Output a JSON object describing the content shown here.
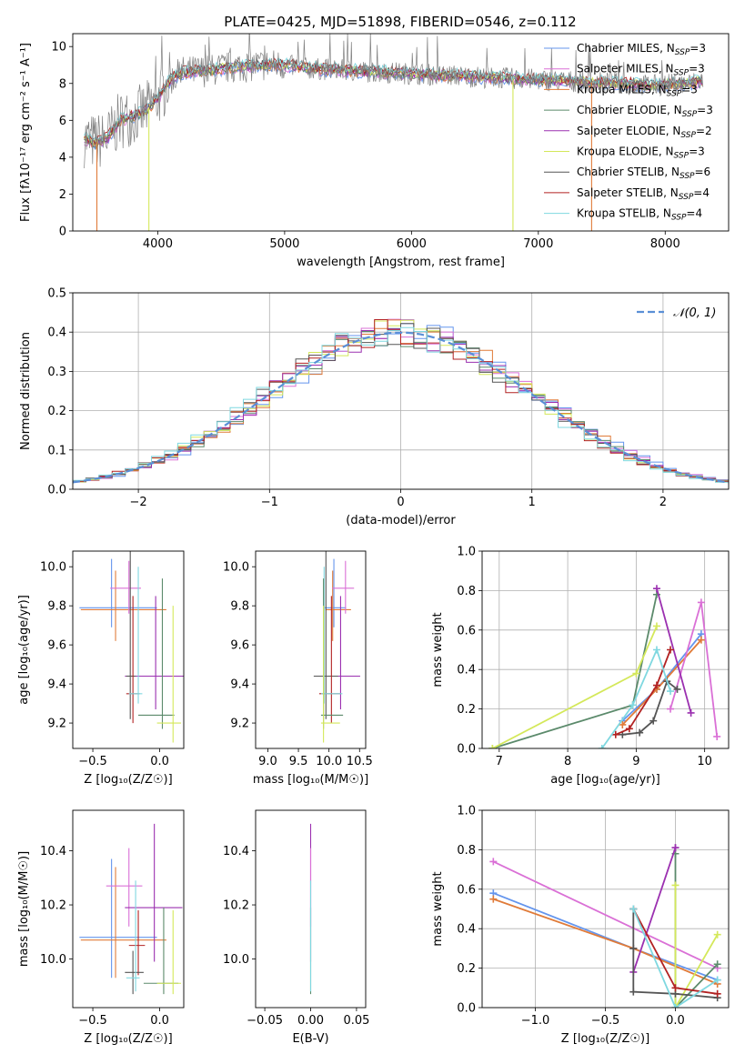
{
  "figure": {
    "title": "PLATE=0425, MJD=51898, FIBERID=0546, z=0.112"
  },
  "colors": {
    "chabrier_miles": "#6495ed",
    "salpeter_miles": "#da70d6",
    "kroupa_miles": "#e07b39",
    "chabrier_elodie": "#5b8a6b",
    "salpeter_elodie": "#9b30b0",
    "kroupa_elodie": "#d4e85a",
    "chabrier_stelib": "#555555",
    "salpeter_stelib": "#b22222",
    "kroupa_stelib": "#7fd8e0",
    "data": "#808080",
    "gauss": "#5a8fd6"
  },
  "chart_data": [
    {
      "id": "spectrum",
      "type": "line",
      "xlabel": "wavelength [Angstrom, rest frame]",
      "ylabel": "Flux [fλ10⁻¹⁷ erg cm⁻² s⁻¹ A⁻¹]",
      "xlim": [
        3330,
        8500
      ],
      "ylim": [
        0,
        10.7
      ],
      "xticks": [
        4000,
        5000,
        6000,
        7000,
        8000
      ],
      "yticks": [
        0,
        2,
        4,
        6,
        8,
        10
      ],
      "legend_position": "top-right",
      "legend": [
        {
          "label": "Chabrier MILES, N",
          "sub": "SSP",
          "suffix": "=3",
          "color": "chabrier_miles"
        },
        {
          "label": "Salpeter MILES, N",
          "sub": "SSP",
          "suffix": "=3",
          "color": "salpeter_miles"
        },
        {
          "label": "Kroupa MILES, N",
          "sub": "SSP",
          "suffix": "=3",
          "color": "kroupa_miles"
        },
        {
          "label": "Chabrier ELODIE, N",
          "sub": "SSP",
          "suffix": "=3",
          "color": "chabrier_elodie"
        },
        {
          "label": "Salpeter ELODIE, N",
          "sub": "SSP",
          "suffix": "=2",
          "color": "salpeter_elodie"
        },
        {
          "label": "Kroupa ELODIE, N",
          "sub": "SSP",
          "suffix": "=3",
          "color": "kroupa_elodie"
        },
        {
          "label": "Chabrier STELIB, N",
          "sub": "SSP",
          "suffix": "=6",
          "color": "chabrier_stelib"
        },
        {
          "label": "Salpeter STELIB, N",
          "sub": "SSP",
          "suffix": "=4",
          "color": "salpeter_stelib"
        },
        {
          "label": "Kroupa STELIB, N",
          "sub": "SSP",
          "suffix": "=4",
          "color": "kroupa_stelib"
        }
      ],
      "continuum": {
        "x": [
          3420,
          3500,
          3600,
          3700,
          3800,
          3900,
          4000,
          4100,
          4200,
          4400,
          4600,
          4800,
          5000,
          5200,
          5500,
          5800,
          6100,
          6400,
          6700,
          7000,
          7300,
          7600,
          7900,
          8200,
          8300
        ],
        "y": [
          5.0,
          4.8,
          5.0,
          6.0,
          6.2,
          6.5,
          7.2,
          8.2,
          8.6,
          8.7,
          8.9,
          9.0,
          9.0,
          8.8,
          8.7,
          8.6,
          8.5,
          8.4,
          8.3,
          8.2,
          8.1,
          8.0,
          7.9,
          8.0,
          8.2
        ]
      },
      "drops": [
        {
          "x": 3520,
          "color": "kroupa_miles"
        },
        {
          "x": 3930,
          "color": "kroupa_elodie"
        },
        {
          "x": 6800,
          "color": "kroupa_elodie"
        },
        {
          "x": 7420,
          "color": "kroupa_miles"
        }
      ]
    },
    {
      "id": "residuals",
      "type": "histogram",
      "xlabel": "(data-model)/error",
      "ylabel": "Normed distribution",
      "xlim": [
        -2.5,
        2.5
      ],
      "ylim": [
        0,
        0.5
      ],
      "xticks": [
        -2,
        -1,
        0,
        1,
        2
      ],
      "yticks": [
        0.0,
        0.1,
        0.2,
        0.3,
        0.4,
        0.5
      ],
      "bin_width": 0.1,
      "grid": true,
      "legend_position": "top-right",
      "gauss_label": "𝒩(0, 1)"
    },
    {
      "id": "age_vs_Z",
      "type": "errorbar",
      "xlabel": "Z [log₁₀(Z/Z☉)]",
      "ylabel": "age  [log₁₀(age/yr)]",
      "xlim": [
        -0.65,
        0.18
      ],
      "ylim": [
        9.07,
        10.08
      ],
      "xticks": [
        -0.5,
        0.0
      ],
      "yticks": [
        9.2,
        9.4,
        9.6,
        9.8,
        10.0
      ],
      "points": [
        {
          "color": "chabrier_miles",
          "x": -0.36,
          "xerr": [
            0.24,
            0.34
          ],
          "y": 9.79,
          "yerr": [
            0.1,
            0.25
          ]
        },
        {
          "color": "kroupa_miles",
          "x": -0.33,
          "xerr": [
            0.26,
            0.38
          ],
          "y": 9.78,
          "yerr": [
            0.16,
            0.2
          ]
        },
        {
          "color": "salpeter_miles",
          "x": -0.23,
          "xerr": [
            0.14,
            0.09
          ],
          "y": 9.89,
          "yerr": [
            0.13,
            0.14
          ]
        },
        {
          "color": "salpeter_elodie",
          "x": -0.03,
          "xerr": [
            0.23,
            0.22
          ],
          "y": 9.44,
          "yerr": [
            0.17,
            0.41
          ]
        },
        {
          "color": "chabrier_stelib",
          "x": -0.22,
          "xerr": [
            0.03,
            0.04
          ],
          "y": 9.44,
          "yerr": [
            0.22,
            0.64
          ]
        },
        {
          "color": "salpeter_stelib",
          "x": -0.2,
          "xerr": [
            0.05,
            0.05
          ],
          "y": 9.35,
          "yerr": [
            0.15,
            0.5
          ]
        },
        {
          "color": "kroupa_stelib",
          "x": -0.16,
          "xerr": [
            0.07,
            0.03
          ],
          "y": 9.35,
          "yerr": [
            0.05,
            0.65
          ]
        },
        {
          "color": "chabrier_elodie",
          "x": 0.02,
          "xerr": [
            0.18,
            0.09
          ],
          "y": 9.24,
          "yerr": [
            0.07,
            0.7
          ]
        },
        {
          "color": "kroupa_elodie",
          "x": 0.1,
          "xerr": [
            0.12,
            0.06
          ],
          "y": 9.2,
          "yerr": [
            0.1,
            0.6
          ]
        }
      ]
    },
    {
      "id": "age_vs_mass",
      "type": "errorbar",
      "xlabel": "mass [log₁₀(M/M☉)]",
      "ylabel": "",
      "xlim": [
        8.8,
        10.6
      ],
      "ylim": [
        9.07,
        10.08
      ],
      "xticks": [
        9.0,
        9.5,
        10.0,
        10.5
      ],
      "yticks": [
        9.2,
        9.4,
        9.6,
        9.8,
        10.0
      ],
      "points": [
        {
          "color": "chabrier_miles",
          "x": 10.08,
          "xerr": [
            0.15,
            0.2
          ],
          "y": 9.79,
          "yerr": [
            0.1,
            0.25
          ]
        },
        {
          "color": "kroupa_miles",
          "x": 10.06,
          "xerr": [
            0.12,
            0.3
          ],
          "y": 9.78,
          "yerr": [
            0.16,
            0.2
          ]
        },
        {
          "color": "salpeter_miles",
          "x": 10.27,
          "xerr": [
            0.22,
            0.14
          ],
          "y": 9.89,
          "yerr": [
            0.13,
            0.14
          ]
        },
        {
          "color": "salpeter_elodie",
          "x": 10.19,
          "xerr": [
            0.34,
            0.32
          ],
          "y": 9.44,
          "yerr": [
            0.17,
            0.41
          ]
        },
        {
          "color": "chabrier_stelib",
          "x": 9.95,
          "xerr": [
            0.2,
            0.2
          ],
          "y": 9.44,
          "yerr": [
            0.22,
            0.64
          ]
        },
        {
          "color": "salpeter_stelib",
          "x": 10.04,
          "xerr": [
            0.2,
            0.16
          ],
          "y": 9.35,
          "yerr": [
            0.15,
            0.5
          ]
        },
        {
          "color": "kroupa_stelib",
          "x": 9.92,
          "xerr": [
            0.05,
            0.3
          ],
          "y": 9.35,
          "yerr": [
            0.05,
            0.65
          ]
        },
        {
          "color": "chabrier_elodie",
          "x": 9.91,
          "xerr": [
            0.04,
            0.32
          ],
          "y": 9.24,
          "yerr": [
            0.07,
            0.7
          ]
        },
        {
          "color": "kroupa_elodie",
          "x": 9.91,
          "xerr": [
            0.04,
            0.27
          ],
          "y": 9.2,
          "yerr": [
            0.1,
            0.6
          ]
        }
      ]
    },
    {
      "id": "weight_vs_age",
      "type": "line",
      "xlabel": "age  [log₁₀(age/yr)]",
      "ylabel": "mass weight",
      "xlim": [
        6.75,
        10.35
      ],
      "ylim": [
        0.0,
        1.0
      ],
      "xticks": [
        7,
        8,
        9,
        10
      ],
      "yticks": [
        0.0,
        0.2,
        0.4,
        0.6,
        0.8,
        1.0
      ],
      "grid": true,
      "series": [
        {
          "color": "chabrier_miles",
          "x": [
            8.8,
            9.3,
            9.95
          ],
          "y": [
            0.14,
            0.3,
            0.58
          ]
        },
        {
          "color": "kroupa_miles",
          "x": [
            8.8,
            9.3,
            9.95
          ],
          "y": [
            0.12,
            0.3,
            0.55
          ]
        },
        {
          "color": "salpeter_miles",
          "x": [
            9.5,
            9.95,
            10.18
          ],
          "y": [
            0.2,
            0.74,
            0.06
          ]
        },
        {
          "color": "chabrier_elodie",
          "x": [
            6.9,
            8.95,
            9.3
          ],
          "y": [
            0.0,
            0.22,
            0.78
          ]
        },
        {
          "color": "salpeter_elodie",
          "x": [
            9.3,
            9.8
          ],
          "y": [
            0.81,
            0.18
          ]
        },
        {
          "color": "kroupa_elodie",
          "x": [
            6.9,
            9.0,
            9.3
          ],
          "y": [
            0.0,
            0.38,
            0.62
          ]
        },
        {
          "color": "chabrier_stelib",
          "x": [
            8.8,
            9.05,
            9.25,
            9.45,
            9.6
          ],
          "y": [
            0.07,
            0.08,
            0.14,
            0.34,
            0.3
          ]
        },
        {
          "color": "salpeter_stelib",
          "x": [
            8.7,
            8.9,
            9.3,
            9.5
          ],
          "y": [
            0.07,
            0.1,
            0.32,
            0.5
          ]
        },
        {
          "color": "kroupa_stelib",
          "x": [
            8.5,
            8.95,
            9.3,
            9.5
          ],
          "y": [
            0.0,
            0.22,
            0.5,
            0.29
          ]
        }
      ]
    },
    {
      "id": "mass_vs_Z",
      "type": "errorbar",
      "xlabel": "Z [log₁₀(Z/Z☉)]",
      "ylabel": "mass [log₁₀(M/M☉)]",
      "xlim": [
        -0.65,
        0.18
      ],
      "ylim": [
        9.82,
        10.55
      ],
      "xticks": [
        -0.5,
        0.0
      ],
      "yticks": [
        10.0,
        10.2,
        10.4
      ],
      "points": [
        {
          "color": "chabrier_miles",
          "x": -0.36,
          "xerr": [
            0.24,
            0.34
          ],
          "y": 10.08,
          "yerr": [
            0.15,
            0.29
          ]
        },
        {
          "color": "kroupa_miles",
          "x": -0.33,
          "xerr": [
            0.26,
            0.38
          ],
          "y": 10.07,
          "yerr": [
            0.14,
            0.27
          ]
        },
        {
          "color": "salpeter_miles",
          "x": -0.23,
          "xerr": [
            0.17,
            0.1
          ],
          "y": 10.27,
          "yerr": [
            0.15,
            0.14
          ]
        },
        {
          "color": "salpeter_elodie",
          "x": -0.04,
          "xerr": [
            0.22,
            0.21
          ],
          "y": 10.19,
          "yerr": [
            0.2,
            0.31
          ]
        },
        {
          "color": "salpeter_stelib",
          "x": -0.16,
          "xerr": [
            0.07,
            0.05
          ],
          "y": 10.05,
          "yerr": [
            0.11,
            0.13
          ]
        },
        {
          "color": "chabrier_stelib",
          "x": -0.2,
          "xerr": [
            0.06,
            0.08
          ],
          "y": 9.95,
          "yerr": [
            0.08,
            0.08
          ]
        },
        {
          "color": "kroupa_stelib",
          "x": -0.18,
          "xerr": [
            0.07,
            0.03
          ],
          "y": 9.93,
          "yerr": [
            0.05,
            0.36
          ]
        },
        {
          "color": "chabrier_elodie",
          "x": 0.03,
          "xerr": [
            0.15,
            0.11
          ],
          "y": 9.91,
          "yerr": [
            0.04,
            0.28
          ]
        },
        {
          "color": "kroupa_elodie",
          "x": 0.1,
          "xerr": [
            0.12,
            0.06
          ],
          "y": 9.91,
          "yerr": [
            0.04,
            0.27
          ]
        }
      ]
    },
    {
      "id": "mass_vs_ebv",
      "type": "errorbar",
      "xlabel": "E(B-V)",
      "ylabel": "",
      "xlim": [
        -0.06,
        0.06
      ],
      "ylim": [
        9.82,
        10.55
      ],
      "xticks": [
        -0.05,
        0.0,
        0.05
      ],
      "yticks": [
        10.0,
        10.2,
        10.4
      ],
      "points": [
        {
          "color": "salpeter_elodie",
          "x": 0.0,
          "xerr": [
            0,
            0
          ],
          "y": 10.19,
          "yerr": [
            0.2,
            0.31
          ]
        },
        {
          "color": "salpeter_miles",
          "x": 0.0,
          "xerr": [
            0,
            0
          ],
          "y": 10.27,
          "yerr": [
            0.15,
            0.14
          ]
        },
        {
          "color": "chabrier_elodie",
          "x": 0.0,
          "xerr": [
            0,
            0
          ],
          "y": 9.91,
          "yerr": [
            0.04,
            0.28
          ]
        },
        {
          "color": "kroupa_stelib",
          "x": 0.0,
          "xerr": [
            0,
            0
          ],
          "y": 9.93,
          "yerr": [
            0.05,
            0.36
          ]
        }
      ]
    },
    {
      "id": "weight_vs_Z",
      "type": "line",
      "xlabel": "Z [log₁₀(Z/Z☉)]",
      "ylabel": "mass weight",
      "xlim": [
        -1.38,
        0.38
      ],
      "ylim": [
        0.0,
        1.0
      ],
      "xticks": [
        -1.0,
        -0.5,
        0.0
      ],
      "yticks": [
        0.0,
        0.2,
        0.4,
        0.6,
        0.8,
        1.0
      ],
      "grid": true,
      "series": [
        {
          "color": "chabrier_miles",
          "x": [
            -1.3,
            -0.3,
            0.3
          ],
          "y": [
            0.58,
            0.3,
            0.14
          ]
        },
        {
          "color": "kroupa_miles",
          "x": [
            -1.3,
            -0.3,
            0.3
          ],
          "y": [
            0.55,
            0.3,
            0.12
          ]
        },
        {
          "color": "salpeter_miles",
          "x": [
            -1.3,
            0.3
          ],
          "y": [
            0.74,
            0.2
          ]
        },
        {
          "color": "chabrier_elodie",
          "x": [
            0.0,
            0.0,
            0.3
          ],
          "y": [
            0.78,
            0.0,
            0.22
          ]
        },
        {
          "color": "salpeter_elodie",
          "x": [
            -0.3,
            0.0,
            0.0
          ],
          "y": [
            0.18,
            0.81,
            0.81
          ]
        },
        {
          "color": "kroupa_elodie",
          "x": [
            0.0,
            0.0,
            0.3
          ],
          "y": [
            0.62,
            0.0,
            0.37
          ]
        },
        {
          "color": "chabrier_stelib",
          "x": [
            -0.3,
            -0.3,
            -0.3,
            0.0,
            0.3
          ],
          "y": [
            0.5,
            0.3,
            0.08,
            0.07,
            0.05
          ]
        },
        {
          "color": "salpeter_stelib",
          "x": [
            -0.3,
            0.0,
            0.3
          ],
          "y": [
            0.5,
            0.1,
            0.07
          ]
        },
        {
          "color": "kroupa_stelib",
          "x": [
            -0.3,
            0.0,
            0.3
          ],
          "y": [
            0.5,
            0.0,
            0.14
          ]
        }
      ]
    }
  ]
}
